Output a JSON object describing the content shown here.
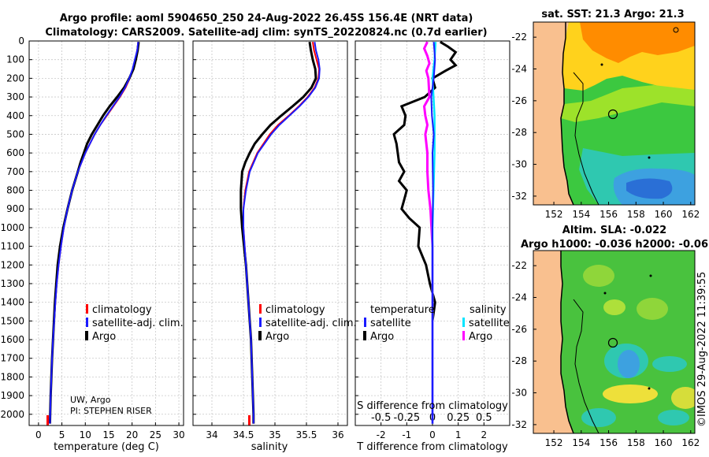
{
  "header": {
    "line1": "Argo profile: aoml 5904650_250 24-Aug-2022 26.45S 156.4E (NRT data)",
    "line2": "Climatology: CARS2009. Satellite-adj clim: synTS_20220824.nc (0.7d earlier)"
  },
  "colors": {
    "climatology": "#ff0000",
    "satellite_adj": "#1a1aff",
    "argo": "#000000",
    "sal_satellite": "#00e5ff",
    "sal_argo": "#ff00ff",
    "land": "#f9c08f"
  },
  "depth_ticks": [
    "0",
    "100",
    "200",
    "300",
    "400",
    "500",
    "600",
    "700",
    "800",
    "900",
    "1000",
    "1100",
    "1200",
    "1300",
    "1400",
    "1500",
    "1600",
    "1700",
    "1800",
    "1900",
    "2000"
  ],
  "legend": {
    "climatology": "climatology",
    "satellite_adj": "satellite-adj. clim.",
    "argo": "Argo"
  },
  "temp_panel": {
    "xlabel": "temperature (deg C)",
    "xticks": [
      "0",
      "5",
      "10",
      "15",
      "20",
      "25",
      "30"
    ],
    "credit1": "UW, Argo",
    "credit2": "PI: STEPHEN RISER"
  },
  "sal_panel": {
    "xlabel": "salinity",
    "xticks": [
      "34",
      "34.5",
      "35",
      "35.5",
      "36"
    ]
  },
  "diff_panel": {
    "xlabel": "T difference from climatology",
    "xticks": [
      "-2",
      "-1",
      "0",
      "1",
      "2"
    ],
    "s_label": "S difference from climatology",
    "s_ticks": [
      "-0.5",
      "-0.25",
      "0",
      "0.25",
      "0.5"
    ],
    "legend_temp_title": "temperature",
    "legend_sal_title": "salinity",
    "legend_satellite": "satellite",
    "legend_argo": "Argo"
  },
  "sst_map": {
    "title": "sat. SST: 21.3 Argo: 21.3",
    "yticks": [
      "-22",
      "-24",
      "-26",
      "-28",
      "-30",
      "-32"
    ],
    "xticks": [
      "152",
      "154",
      "156",
      "158",
      "160",
      "162"
    ]
  },
  "sla_map": {
    "title1": "Altim. SLA: -0.022",
    "title2": "Argo h1000: -0.036 h2000: -0.06",
    "yticks": [
      "-22",
      "-24",
      "-26",
      "-28",
      "-30",
      "-32"
    ],
    "xticks": [
      "152",
      "154",
      "156",
      "158",
      "160",
      "162"
    ]
  },
  "watermark": "©IMOS 29-Aug-2022 11:39:55",
  "chart_data": [
    {
      "type": "line",
      "title": "temperature",
      "xlabel": "temperature (deg C)",
      "ylabel": "depth (dbar)",
      "xlim": [
        -2,
        31
      ],
      "ylim": [
        2060,
        0
      ],
      "series": [
        {
          "name": "climatology",
          "depth": [
            5,
            50,
            100,
            150,
            200,
            250,
            300,
            350,
            400,
            450,
            500,
            600,
            700,
            800,
            900,
            1000,
            1100,
            1200,
            1300,
            1400,
            1500,
            1600,
            1700,
            1800,
            1900,
            2000,
            2050
          ],
          "values": [
            21.3,
            21.1,
            20.7,
            20.2,
            19.5,
            18.6,
            17.4,
            16,
            14.6,
            13.2,
            12,
            10,
            8.4,
            7.2,
            6.2,
            5.4,
            4.8,
            4.3,
            3.9,
            3.6,
            3.35,
            3.1,
            2.9,
            2.75,
            2.6,
            2.5,
            2.45
          ]
        },
        {
          "name": "satellite-adj. clim.",
          "depth": [
            5,
            50,
            100,
            150,
            200,
            250,
            300,
            350,
            400,
            450,
            500,
            600,
            700,
            800,
            900,
            1000,
            1100,
            1200,
            1300,
            1400,
            1500,
            1600,
            1700,
            1800,
            1900,
            2000,
            2050
          ],
          "values": [
            21.3,
            21.1,
            20.6,
            20.1,
            19.4,
            18.5,
            17.3,
            15.9,
            14.5,
            13.2,
            12,
            10,
            8.4,
            7.2,
            6.2,
            5.4,
            4.8,
            4.3,
            3.9,
            3.6,
            3.35,
            3.1,
            2.9,
            2.75,
            2.6,
            2.5,
            2.45
          ]
        },
        {
          "name": "Argo",
          "depth": [
            5,
            50,
            100,
            150,
            200,
            250,
            300,
            350,
            400,
            450,
            500,
            550,
            600,
            650,
            700,
            800,
            900,
            1000,
            1100,
            1200,
            1300,
            1400,
            1500,
            1600,
            1700,
            1800,
            1900,
            2000,
            2050
          ],
          "values": [
            21.4,
            21.2,
            20.8,
            20.3,
            19.4,
            18.3,
            16.8,
            15.2,
            13.8,
            12.6,
            11.4,
            10.4,
            9.7,
            9,
            8.4,
            7.2,
            6.2,
            5.3,
            4.6,
            4.1,
            3.8,
            3.5,
            3.3,
            3.1,
            2.9,
            2.75,
            2.6,
            2.5,
            2.45
          ]
        }
      ]
    },
    {
      "type": "line",
      "title": "salinity",
      "xlabel": "salinity",
      "ylabel": "depth (dbar)",
      "xlim": [
        33.7,
        36.15
      ],
      "ylim": [
        2060,
        0
      ],
      "series": [
        {
          "name": "climatology",
          "depth": [
            5,
            50,
            100,
            150,
            200,
            250,
            300,
            350,
            400,
            450,
            500,
            600,
            700,
            800,
            900,
            1000,
            1100,
            1200,
            1300,
            1400,
            1500,
            1600,
            1700,
            1800,
            1900,
            2000,
            2050
          ],
          "values": [
            35.6,
            35.62,
            35.66,
            35.7,
            35.69,
            35.63,
            35.52,
            35.38,
            35.22,
            35.05,
            34.92,
            34.72,
            34.59,
            34.53,
            34.5,
            34.5,
            34.52,
            34.54,
            34.56,
            34.58,
            34.6,
            34.62,
            34.63,
            34.64,
            34.65,
            34.66,
            34.66
          ]
        },
        {
          "name": "satellite-adj. clim.",
          "depth": [
            5,
            50,
            100,
            150,
            200,
            250,
            300,
            350,
            400,
            450,
            500,
            600,
            700,
            800,
            900,
            1000,
            1100,
            1200,
            1300,
            1400,
            1500,
            1600,
            1700,
            1800,
            1900,
            2000,
            2050
          ],
          "values": [
            35.63,
            35.65,
            35.69,
            35.71,
            35.7,
            35.64,
            35.53,
            35.39,
            35.23,
            35.07,
            34.94,
            34.73,
            34.6,
            34.54,
            34.5,
            34.5,
            34.52,
            34.54,
            34.56,
            34.58,
            34.6,
            34.62,
            34.63,
            34.64,
            34.65,
            34.66,
            34.66
          ]
        },
        {
          "name": "Argo",
          "depth": [
            5,
            50,
            100,
            150,
            200,
            250,
            300,
            350,
            400,
            450,
            500,
            550,
            600,
            650,
            700,
            800,
            900,
            1000,
            1100,
            1200,
            1300,
            1400,
            1500,
            1600,
            1700,
            1800,
            1900,
            2000,
            2050
          ],
          "values": [
            35.55,
            35.57,
            35.6,
            35.64,
            35.65,
            35.58,
            35.45,
            35.28,
            35.1,
            34.93,
            34.8,
            34.68,
            34.6,
            34.53,
            34.48,
            34.46,
            34.46,
            34.48,
            34.51,
            34.54,
            34.56,
            34.58,
            34.6,
            34.62,
            34.63,
            34.64,
            34.65,
            34.66,
            34.66
          ]
        }
      ]
    },
    {
      "type": "line",
      "title": "T and S difference from climatology",
      "xlabel": "T difference from climatology",
      "xlim": [
        -3,
        3
      ],
      "s_xlim": [
        -0.75,
        0.75
      ],
      "ylim": [
        2060,
        0
      ],
      "series": [
        {
          "name": "temperature satellite",
          "depth": [
            5,
            100,
            200,
            300,
            400,
            500,
            600,
            800,
            1000,
            1500,
            2000,
            2050
          ],
          "values": [
            0.05,
            0.1,
            0.05,
            -0.05,
            -0.02,
            0.05,
            0,
            0.02,
            0,
            0,
            0,
            0
          ]
        },
        {
          "name": "temperature Argo",
          "depth": [
            5,
            30,
            60,
            100,
            130,
            160,
            200,
            250,
            300,
            350,
            400,
            450,
            500,
            550,
            600,
            650,
            700,
            750,
            800,
            850,
            900,
            950,
            1000,
            1100,
            1200,
            1300,
            1400,
            1500,
            1600,
            1700,
            1800,
            1900,
            2000,
            2050
          ],
          "values": [
            0.3,
            0.6,
            0.9,
            0.7,
            0.9,
            0.5,
            0,
            0.1,
            -0.3,
            -1.2,
            -1.05,
            -1.1,
            -1.5,
            -1.4,
            -1.35,
            -1.3,
            -1.1,
            -1.3,
            -1,
            -1.1,
            -1.2,
            -0.9,
            -0.5,
            -0.55,
            -0.25,
            -0.1,
            0.1,
            0,
            0,
            0,
            0,
            0,
            0,
            0
          ]
        },
        {
          "name": "salinity satellite",
          "depth": [
            5,
            100,
            200,
            400,
            600,
            800,
            1000,
            1500,
            2000,
            2050
          ],
          "values": [
            0.03,
            0.02,
            0,
            0.02,
            0.02,
            0.01,
            0,
            0,
            0,
            0
          ]
        },
        {
          "name": "salinity Argo",
          "depth": [
            5,
            40,
            80,
            120,
            160,
            200,
            300,
            350,
            400,
            450,
            500,
            600,
            700,
            800,
            900,
            1000,
            1100,
            1200,
            1500,
            2000,
            2050
          ],
          "values": [
            -0.05,
            -0.08,
            -0.05,
            -0.03,
            -0.06,
            -0.04,
            -0.03,
            -0.08,
            -0.07,
            -0.05,
            -0.07,
            -0.05,
            -0.05,
            -0.04,
            -0.02,
            -0.01,
            0,
            0,
            0,
            0,
            0
          ]
        }
      ]
    }
  ]
}
